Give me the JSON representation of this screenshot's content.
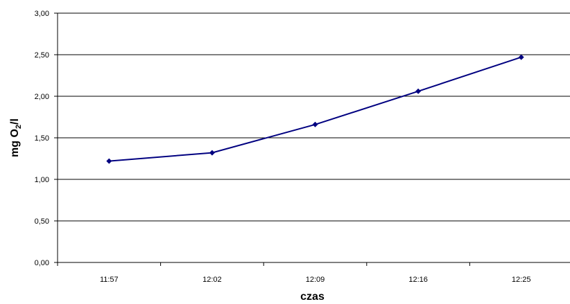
{
  "chart_data": {
    "type": "line",
    "title": "",
    "xlabel": "czas",
    "ylabel": {
      "main": "mg O",
      "subscript": "2",
      "suffix": "/l"
    },
    "categories": [
      "11:57",
      "12:02",
      "12:09",
      "12:16",
      "12:25"
    ],
    "series": [
      {
        "values": [
          1.22,
          1.32,
          1.66,
          2.06,
          2.47
        ],
        "color": "#000080",
        "marker": "diamond"
      }
    ],
    "ylim": [
      0,
      3
    ],
    "y_ticks": [
      "0,00",
      "0,50",
      "1,00",
      "1,50",
      "2,00",
      "2,50",
      "3,00"
    ],
    "grid": "horizontal",
    "legend": "none"
  }
}
